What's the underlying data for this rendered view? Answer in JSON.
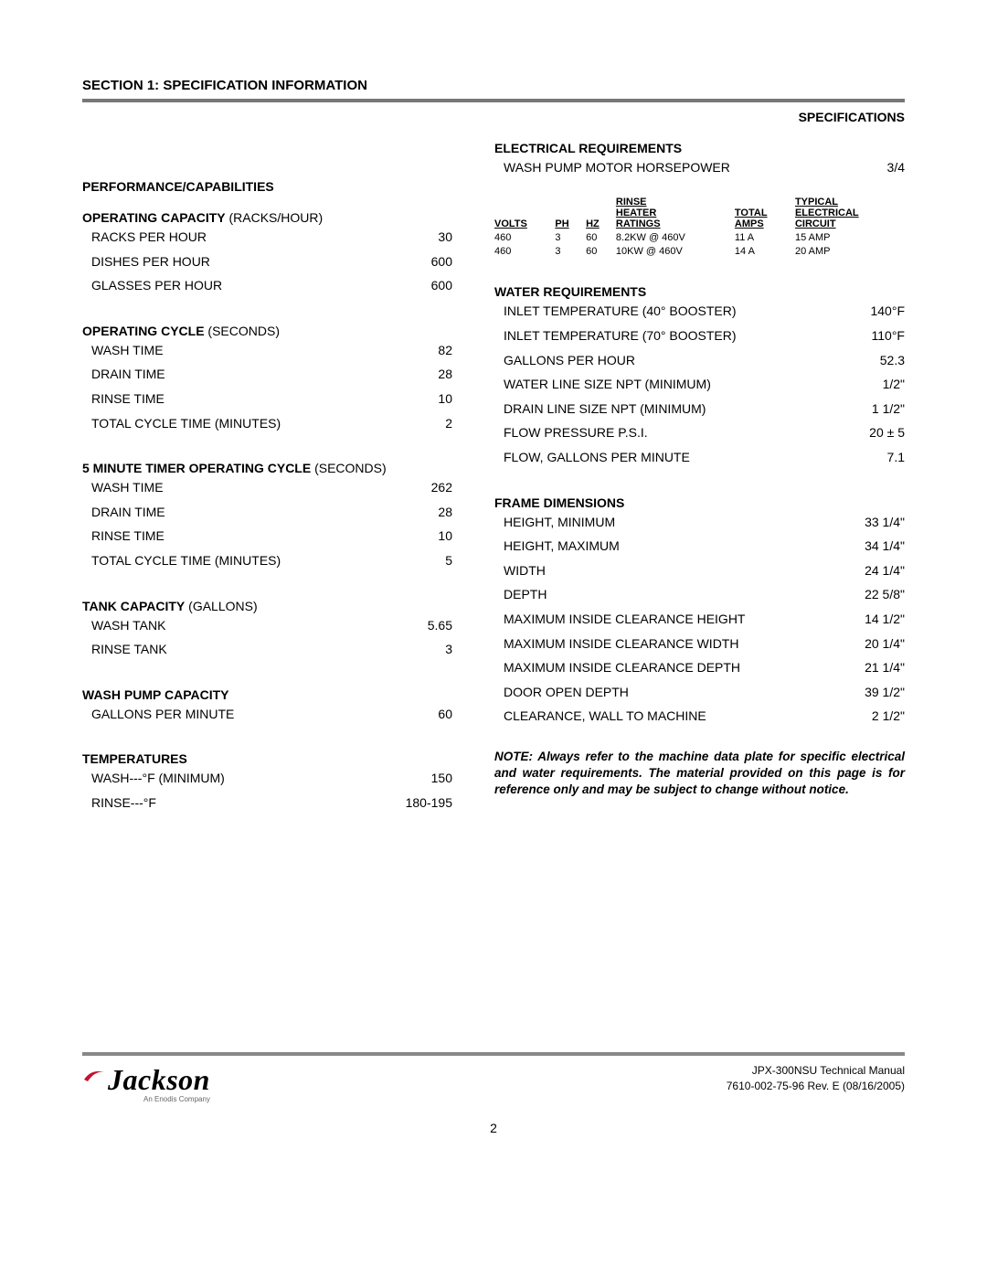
{
  "header": {
    "section_title": "SECTION 1: SPECIFICATION INFORMATION",
    "specifications_label": "SPECIFICATIONS"
  },
  "left": {
    "performance_heading": "PERFORMANCE/CAPABILITIES",
    "operating_capacity_heading": "OPERATING CAPACITY",
    "operating_capacity_paren": " (RACKS/HOUR)",
    "operating_capacity_rows": [
      {
        "label": "RACKS PER HOUR",
        "value": "30"
      },
      {
        "label": "DISHES PER HOUR",
        "value": "600"
      },
      {
        "label": "GLASSES PER HOUR",
        "value": "600"
      }
    ],
    "operating_cycle_heading": "OPERATING CYCLE",
    "operating_cycle_paren": " (SECONDS)",
    "operating_cycle_rows": [
      {
        "label": "WASH TIME",
        "value": "82"
      },
      {
        "label": "DRAIN TIME",
        "value": "28"
      },
      {
        "label": "RINSE TIME",
        "value": "10"
      },
      {
        "label": "TOTAL CYCLE TIME (MINUTES)",
        "value": "2"
      }
    ],
    "timer_cycle_heading": "5 MINUTE TIMER OPERATING CYCLE",
    "timer_cycle_paren": " (SECONDS)",
    "timer_cycle_rows": [
      {
        "label": "WASH TIME",
        "value": "262"
      },
      {
        "label": "DRAIN TIME",
        "value": "28"
      },
      {
        "label": "RINSE TIME",
        "value": "10"
      },
      {
        "label": "TOTAL CYCLE TIME (MINUTES)",
        "value": "5"
      }
    ],
    "tank_capacity_heading": "TANK CAPACITY",
    "tank_capacity_paren": " (GALLONS)",
    "tank_capacity_rows": [
      {
        "label": "WASH TANK",
        "value": "5.65"
      },
      {
        "label": "RINSE TANK",
        "value": "3"
      }
    ],
    "wash_pump_heading": "WASH PUMP CAPACITY",
    "wash_pump_rows": [
      {
        "label": "GALLONS PER MINUTE",
        "value": "60"
      }
    ],
    "temperatures_heading": "TEMPERATURES",
    "temperatures_rows": [
      {
        "label": "WASH---°F (MINIMUM)",
        "value": "150"
      },
      {
        "label": "RINSE---°F",
        "value": "180-195"
      }
    ]
  },
  "right": {
    "electrical_heading": "ELECTRICAL REQUIREMENTS",
    "motor_hp_row": {
      "label": "WASH PUMP MOTOR HORSEPOWER",
      "value": "3/4"
    },
    "elec_table": {
      "headers": {
        "volts": "VOLTS",
        "ph": "PH",
        "hz": "HZ",
        "rinse_heater": "RINSE HEATER RATINGS",
        "total_amps": "TOTAL AMPS",
        "circuit": "TYPICAL ELECTRICAL CIRCUIT"
      },
      "rows": [
        {
          "volts": "460",
          "ph": "3",
          "hz": "60",
          "rating": "8.2KW @ 460V",
          "amps": "11 A",
          "circuit": "15 AMP"
        },
        {
          "volts": "460",
          "ph": "3",
          "hz": "60",
          "rating": "10KW @ 460V",
          "amps": "14 A",
          "circuit": "20 AMP"
        }
      ]
    },
    "water_heading": "WATER REQUIREMENTS",
    "water_rows": [
      {
        "label": "INLET TEMPERATURE (40° BOOSTER)",
        "value": "140°F"
      },
      {
        "label": "INLET TEMPERATURE (70° BOOSTER)",
        "value": "110°F"
      },
      {
        "label": "GALLONS PER HOUR",
        "value": "52.3"
      },
      {
        "label": "WATER LINE SIZE NPT (MINIMUM)",
        "value": "1/2\""
      },
      {
        "label": "DRAIN LINE SIZE NPT (MINIMUM)",
        "value": "1 1/2\""
      },
      {
        "label": "FLOW PRESSURE P.S.I.",
        "value": "20  ± 5"
      },
      {
        "label": "FLOW, GALLONS PER MINUTE",
        "value": "7.1"
      }
    ],
    "frame_heading": "FRAME DIMENSIONS",
    "frame_rows": [
      {
        "label": "HEIGHT, MINIMUM",
        "value": "33 1/4\""
      },
      {
        "label": "HEIGHT, MAXIMUM",
        "value": "34 1/4\""
      },
      {
        "label": "WIDTH",
        "value": "24 1/4\""
      },
      {
        "label": "DEPTH",
        "value": "22 5/8\""
      },
      {
        "label": "MAXIMUM INSIDE CLEARANCE HEIGHT",
        "value": "14 1/2\""
      },
      {
        "label": "MAXIMUM INSIDE CLEARANCE WIDTH",
        "value": "20 1/4\""
      },
      {
        "label": "MAXIMUM INSIDE CLEARANCE DEPTH",
        "value": "21 1/4\""
      },
      {
        "label": "DOOR OPEN DEPTH",
        "value": "39 1/2\""
      },
      {
        "label": "CLEARANCE, WALL TO MACHINE",
        "value": "2 1/2\""
      }
    ],
    "note": "NOTE: Always refer to the machine data plate for specific electrical and water requirements. The material provided on this page is for reference only and may be subject to change without notice."
  },
  "footer": {
    "logo_text": "Jackson",
    "logo_sub": "An Enodis Company",
    "manual_line1": "JPX-300NSU Technical Manual",
    "manual_line2": "7610-002-75-96 Rev. E (08/16/2005)",
    "page_number": "2"
  },
  "style": {
    "rule_color": "#777777",
    "text_color": "#000000",
    "swoosh_color": "#c8102e"
  }
}
